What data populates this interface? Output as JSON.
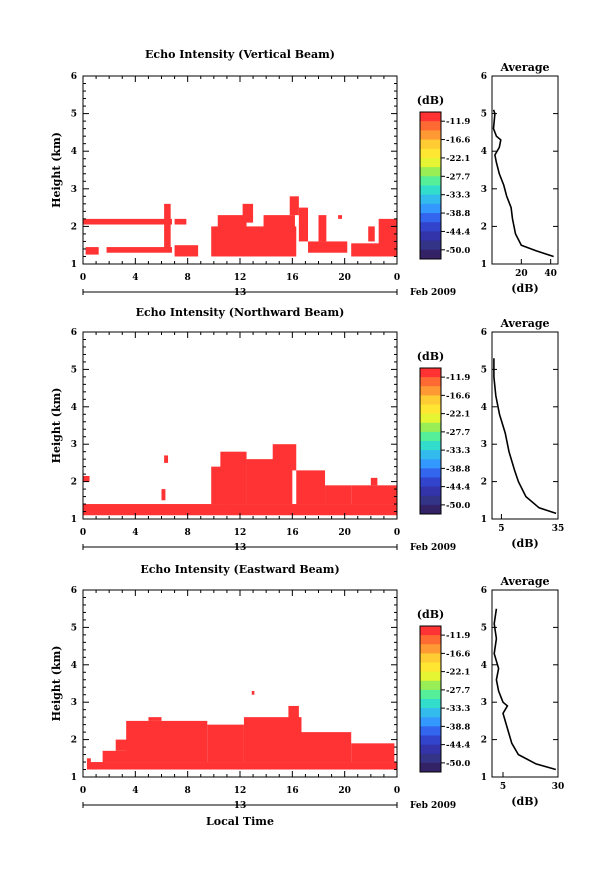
{
  "shared": {
    "colorbar_unit": "(dB)",
    "colorbar_labels": [
      "-11.9",
      "-16.6",
      "-22.1",
      "-27.7",
      "-33.3",
      "-38.8",
      "-44.4",
      "-50.0"
    ],
    "colorbar_colors": [
      "#ff3333",
      "#ff6a33",
      "#ff9933",
      "#ffcc33",
      "#ffe633",
      "#e6f533",
      "#99ee55",
      "#55ee99",
      "#33ddcc",
      "#33bbee",
      "#3399ff",
      "#3366ee",
      "#3344cc",
      "#3333aa",
      "#333388",
      "#332266"
    ],
    "x_ticks": [
      "0",
      "4",
      "8",
      "12",
      "16",
      "20",
      "0"
    ],
    "y_ticks": [
      "1",
      "2",
      "3",
      "4",
      "5",
      "6"
    ],
    "date_label": "13",
    "month_label": "Feb 2009",
    "ylabel": "Height (km)",
    "xlabel": "Local Time",
    "avg_title": "Average",
    "avg_xlabel": "(dB)",
    "fill_color": "#ff3333"
  },
  "chart_data": [
    {
      "type": "heatmap",
      "title": "Echo Intensity (Vertical Beam)",
      "xlim": [
        0,
        24
      ],
      "ylim": [
        1,
        6
      ],
      "x_ticks": [
        0,
        4,
        8,
        12,
        16,
        20,
        24
      ],
      "echo_regions_hours_km": [
        [
          0,
          6.8,
          2.05,
          2.2
        ],
        [
          7,
          7.9,
          2.05,
          2.2
        ],
        [
          6.2,
          6.7,
          1.4,
          2.6
        ],
        [
          0.2,
          1.2,
          1.25,
          1.45
        ],
        [
          1.8,
          6.8,
          1.3,
          1.45
        ],
        [
          7,
          8.8,
          1.2,
          1.5
        ],
        [
          9.8,
          16.3,
          1.2,
          2.0
        ],
        [
          10.3,
          12.5,
          1.9,
          2.3
        ],
        [
          12.2,
          13,
          2.1,
          2.6
        ],
        [
          13.8,
          16.2,
          1.6,
          2.3
        ],
        [
          15.8,
          16.5,
          2.3,
          2.8
        ],
        [
          16.5,
          17.2,
          1.6,
          2.5
        ],
        [
          17.2,
          20.2,
          1.3,
          1.6
        ],
        [
          18,
          18.6,
          1.6,
          2.3
        ],
        [
          20.5,
          22.8,
          1.2,
          1.55
        ],
        [
          22.6,
          24,
          1.2,
          2.2
        ],
        [
          21.8,
          22.3,
          1.6,
          2.0
        ],
        [
          19.5,
          19.8,
          2.2,
          2.3
        ]
      ],
      "average": {
        "xlim": [
          0,
          45
        ],
        "x_ticks": [
          20,
          40
        ],
        "x_tick_labels": [
          "20",
          "40"
        ],
        "profile": [
          [
            42,
            1.2
          ],
          [
            30,
            1.35
          ],
          [
            20,
            1.5
          ],
          [
            16,
            1.8
          ],
          [
            14,
            2.2
          ],
          [
            13,
            2.5
          ],
          [
            10,
            2.8
          ],
          [
            8,
            3.1
          ],
          [
            5,
            3.4
          ],
          [
            3,
            3.7
          ],
          [
            2,
            3.9
          ],
          [
            5,
            4.1
          ],
          [
            6,
            4.3
          ],
          [
            3,
            4.4
          ],
          [
            1,
            4.6
          ],
          [
            2,
            5.0
          ],
          [
            1,
            5.1
          ]
        ]
      }
    },
    {
      "type": "heatmap",
      "title": "Echo Intensity (Northward Beam)",
      "xlim": [
        0,
        24
      ],
      "ylim": [
        1,
        6
      ],
      "x_ticks": [
        0,
        4,
        8,
        12,
        16,
        20,
        24
      ],
      "echo_regions_hours_km": [
        [
          0,
          24,
          1.1,
          1.4
        ],
        [
          0,
          0.5,
          2.0,
          2.15
        ],
        [
          6,
          6.3,
          1.5,
          1.8
        ],
        [
          6.2,
          6.5,
          2.5,
          2.7
        ],
        [
          9.8,
          11.5,
          1.4,
          2.4
        ],
        [
          10.5,
          12.5,
          1.4,
          2.8
        ],
        [
          12.5,
          16,
          1.4,
          2.6
        ],
        [
          14.5,
          16.3,
          2.3,
          3.0
        ],
        [
          16.3,
          18.5,
          1.4,
          2.3
        ],
        [
          18.5,
          20.5,
          1.4,
          1.9
        ],
        [
          20.5,
          24,
          1.4,
          1.9
        ],
        [
          22,
          22.5,
          1.9,
          2.1
        ]
      ],
      "average": {
        "xlim": [
          0,
          35
        ],
        "x_ticks": [
          5,
          35
        ],
        "x_tick_labels": [
          "5",
          "35"
        ],
        "profile": [
          [
            34,
            1.15
          ],
          [
            25,
            1.3
          ],
          [
            18,
            1.6
          ],
          [
            14,
            2.0
          ],
          [
            12,
            2.3
          ],
          [
            9,
            2.8
          ],
          [
            7,
            3.3
          ],
          [
            4,
            3.8
          ],
          [
            2,
            4.3
          ],
          [
            1,
            4.8
          ],
          [
            1,
            5.3
          ]
        ]
      }
    },
    {
      "type": "heatmap",
      "title": "Echo Intensity (Eastward Beam)",
      "xlim": [
        0,
        24
      ],
      "ylim": [
        1,
        6
      ],
      "x_ticks": [
        0,
        4,
        8,
        12,
        16,
        20,
        24
      ],
      "echo_regions_hours_km": [
        [
          0.3,
          24,
          1.2,
          1.4
        ],
        [
          0.3,
          0.6,
          1.4,
          1.5
        ],
        [
          1.5,
          3.5,
          1.4,
          1.7
        ],
        [
          2.5,
          4.5,
          1.7,
          2.0
        ],
        [
          3.3,
          9.5,
          1.4,
          2.5
        ],
        [
          5,
          6,
          2.5,
          2.6
        ],
        [
          9.5,
          12.3,
          1.4,
          2.4
        ],
        [
          12.3,
          16.7,
          1.4,
          2.6
        ],
        [
          15.7,
          16.5,
          2.5,
          2.9
        ],
        [
          16.7,
          20.5,
          1.4,
          2.2
        ],
        [
          20.5,
          23.8,
          1.4,
          1.9
        ],
        [
          12.9,
          13.1,
          3.2,
          3.3
        ]
      ],
      "average": {
        "xlim": [
          0,
          30
        ],
        "x_ticks": [
          5,
          30
        ],
        "x_tick_labels": [
          "5",
          "30"
        ],
        "profile": [
          [
            29,
            1.2
          ],
          [
            20,
            1.35
          ],
          [
            12,
            1.6
          ],
          [
            9,
            1.9
          ],
          [
            7,
            2.3
          ],
          [
            5,
            2.7
          ],
          [
            7,
            2.9
          ],
          [
            5,
            3.0
          ],
          [
            3,
            3.3
          ],
          [
            2,
            3.6
          ],
          [
            3,
            3.9
          ],
          [
            1,
            4.3
          ],
          [
            2,
            4.7
          ],
          [
            1,
            5.1
          ],
          [
            2,
            5.5
          ]
        ]
      }
    }
  ]
}
